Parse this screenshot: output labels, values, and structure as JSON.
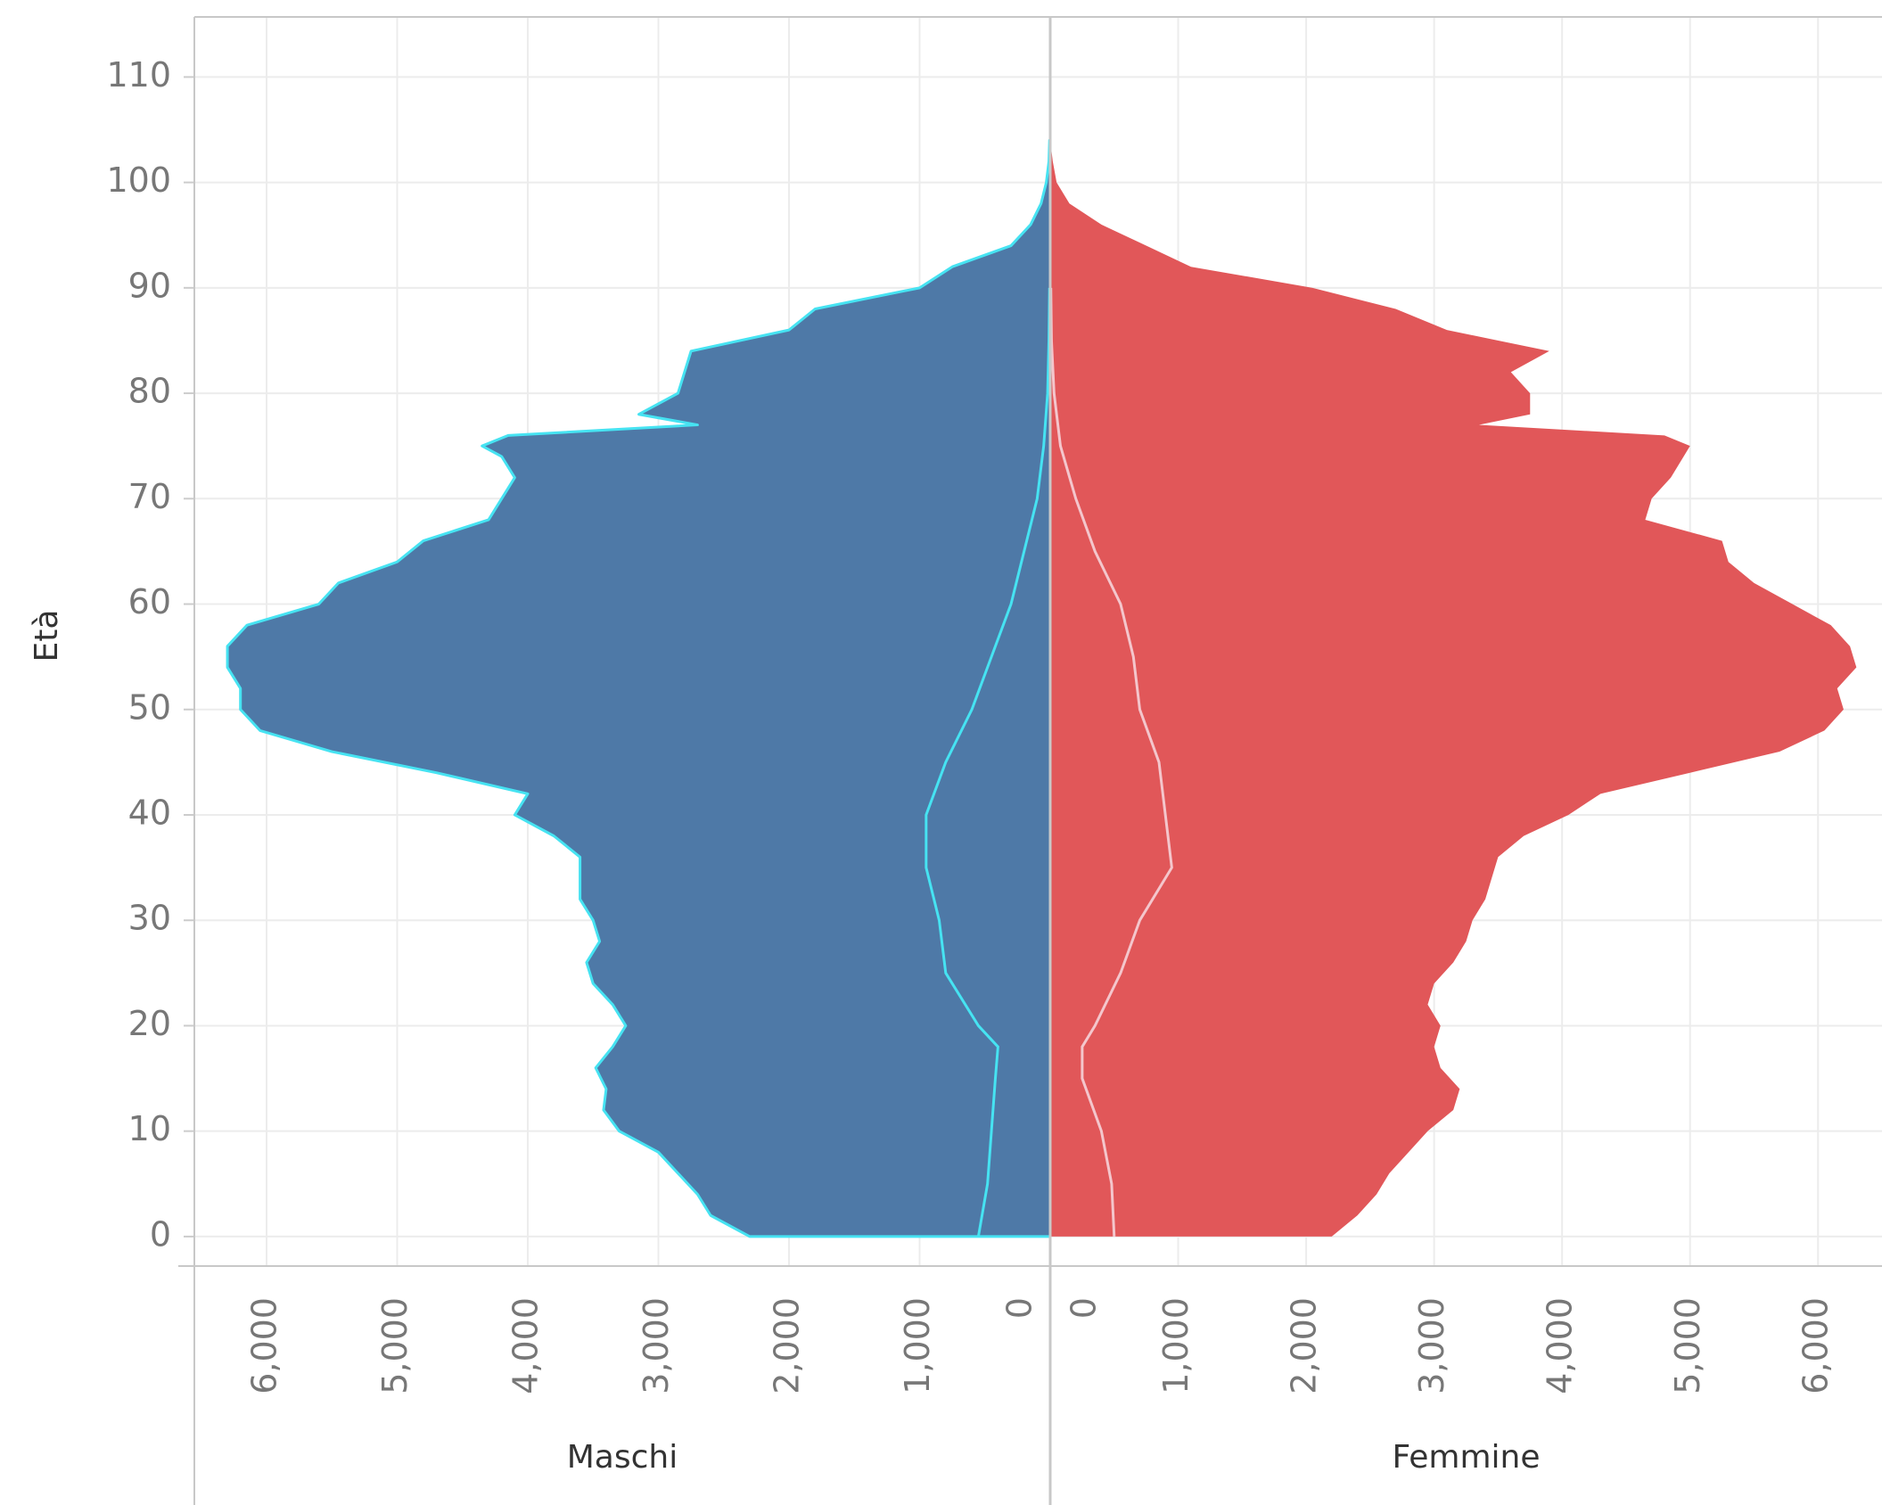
{
  "chart_data": {
    "type": "pyramid",
    "y_label": "Età",
    "ylim": [
      -2.8,
      115.7
    ],
    "yticks": [
      0,
      10,
      20,
      30,
      40,
      50,
      60,
      70,
      80,
      90,
      100,
      110
    ],
    "grid": true,
    "x": [
      0,
      2,
      4,
      6,
      8,
      10,
      12,
      14,
      16,
      18,
      20,
      22,
      24,
      26,
      28,
      30,
      32,
      34,
      36,
      38,
      40,
      42,
      44,
      46,
      48,
      50,
      52,
      54,
      56,
      58,
      60,
      62,
      64,
      66,
      68,
      70,
      72,
      74,
      75,
      76,
      77,
      78,
      80,
      82,
      84,
      86,
      88,
      90,
      92,
      94,
      96,
      98,
      100,
      102,
      104
    ],
    "line_x": [
      0,
      5,
      10,
      15,
      18,
      20,
      25,
      30,
      35,
      40,
      45,
      50,
      55,
      60,
      65,
      70,
      75,
      80,
      85,
      90
    ],
    "series": [
      {
        "name": "Maschi",
        "color": "#4e79a7",
        "outline": "#46e3f2",
        "line_color": "#46e3f2",
        "xlim": [
          6553,
          0
        ],
        "xticks": [
          {
            "value": 6000,
            "label": "6,000"
          },
          {
            "value": 5000,
            "label": "5,000"
          },
          {
            "value": 4000,
            "label": "4,000"
          },
          {
            "value": 3000,
            "label": "3,000"
          },
          {
            "value": 2000,
            "label": "2,000"
          },
          {
            "value": 1000,
            "label": "1,000"
          },
          0
        ],
        "values": [
          2300,
          2600,
          2700,
          2850,
          3000,
          3300,
          3420,
          3400,
          3480,
          3350,
          3250,
          3350,
          3500,
          3550,
          3450,
          3500,
          3600,
          3600,
          3600,
          3800,
          4100,
          4000,
          4700,
          5500,
          6050,
          6200,
          6200,
          6300,
          6300,
          6150,
          5600,
          5450,
          5000,
          4800,
          4300,
          4200,
          4100,
          4200,
          4350,
          4150,
          2700,
          3150,
          2850,
          2800,
          2750,
          2000,
          1800,
          1000,
          750,
          300,
          150,
          70,
          30,
          10,
          5
        ],
        "line_values": [
          550,
          480,
          450,
          420,
          400,
          550,
          800,
          850,
          950,
          950,
          800,
          600,
          450,
          300,
          200,
          100,
          50,
          20,
          10,
          5
        ]
      },
      {
        "name": "Femmine",
        "color": "#e15759",
        "line_color": "#f4c6cc",
        "xlim": [
          0,
          6500
        ],
        "xticks": [
          0,
          {
            "value": 1000,
            "label": "1,000"
          },
          {
            "value": 2000,
            "label": "2,000"
          },
          {
            "value": 3000,
            "label": "3,000"
          },
          {
            "value": 4000,
            "label": "4,000"
          },
          {
            "value": 5000,
            "label": "5,000"
          },
          {
            "value": 6000,
            "label": "6,000"
          }
        ],
        "values": [
          2200,
          2400,
          2550,
          2650,
          2800,
          2950,
          3150,
          3200,
          3050,
          3000,
          3050,
          2950,
          3000,
          3150,
          3250,
          3300,
          3400,
          3450,
          3500,
          3700,
          4050,
          4300,
          5000,
          5700,
          6050,
          6200,
          6150,
          6300,
          6250,
          6100,
          5800,
          5500,
          5300,
          5250,
          4650,
          4700,
          4850,
          4950,
          5000,
          4800,
          3350,
          3750,
          3750,
          3600,
          3900,
          3100,
          2700,
          2050,
          1100,
          750,
          400,
          150,
          50,
          20,
          0
        ],
        "line_values": [
          500,
          480,
          400,
          250,
          250,
          350,
          550,
          700,
          950,
          900,
          850,
          700,
          650,
          550,
          350,
          200,
          80,
          30,
          10,
          5
        ]
      }
    ]
  }
}
